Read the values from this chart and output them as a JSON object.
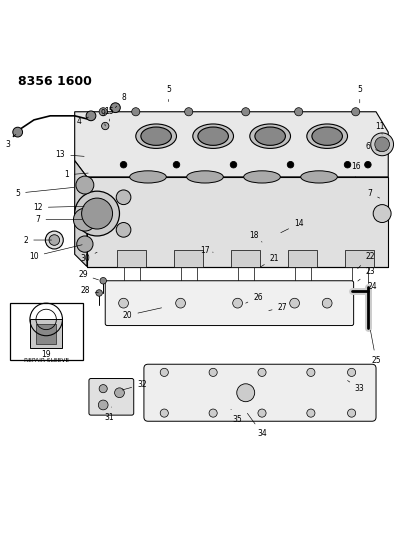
{
  "title_code": "8356 1600",
  "bg_color": "#ffffff",
  "line_color": "#000000",
  "fig_width": 4.1,
  "fig_height": 5.33,
  "dpi": 100,
  "repair_sleeve": "REPAIR SLEEVE",
  "labels_pos": {
    "1": [
      0.16,
      0.725,
      0.22,
      0.73
    ],
    "2": [
      0.06,
      0.565,
      0.13,
      0.565
    ],
    "3": [
      0.015,
      0.8,
      0.04,
      0.83
    ],
    "4": [
      0.19,
      0.855,
      0.22,
      0.87
    ],
    "5a": [
      0.04,
      0.68,
      0.185,
      0.695
    ],
    "5b": [
      0.41,
      0.935,
      0.41,
      0.905
    ],
    "5c": [
      0.88,
      0.935,
      0.88,
      0.895
    ],
    "6": [
      0.9,
      0.795,
      0.935,
      0.78
    ],
    "7a": [
      0.09,
      0.615,
      0.205,
      0.615
    ],
    "7b": [
      0.905,
      0.68,
      0.935,
      0.665
    ],
    "8": [
      0.3,
      0.915,
      0.28,
      0.89
    ],
    "9": [
      0.25,
      0.875,
      0.255,
      0.845
    ],
    "10": [
      0.08,
      0.525,
      0.205,
      0.555
    ],
    "11": [
      0.93,
      0.845,
      0.935,
      0.825
    ],
    "12": [
      0.09,
      0.645,
      0.21,
      0.648
    ],
    "13": [
      0.145,
      0.775,
      0.21,
      0.77
    ],
    "14": [
      0.73,
      0.605,
      0.68,
      0.58
    ],
    "15": [
      0.265,
      0.88,
      0.265,
      0.857
    ],
    "16": [
      0.87,
      0.745,
      0.87,
      0.72
    ],
    "17": [
      0.5,
      0.54,
      0.52,
      0.535
    ],
    "18": [
      0.62,
      0.575,
      0.64,
      0.56
    ],
    "20": [
      0.31,
      0.38,
      0.4,
      0.4
    ],
    "21": [
      0.67,
      0.52,
      0.63,
      0.495
    ],
    "22": [
      0.905,
      0.525,
      0.87,
      0.49
    ],
    "23": [
      0.905,
      0.488,
      0.87,
      0.46
    ],
    "24": [
      0.91,
      0.45,
      0.9,
      0.44
    ],
    "25": [
      0.92,
      0.27,
      0.905,
      0.35
    ],
    "26": [
      0.63,
      0.425,
      0.6,
      0.41
    ],
    "27": [
      0.69,
      0.4,
      0.65,
      0.39
    ],
    "28": [
      0.205,
      0.44,
      0.245,
      0.435
    ],
    "29": [
      0.2,
      0.48,
      0.245,
      0.465
    ],
    "30": [
      0.205,
      0.52,
      0.235,
      0.535
    ],
    "31": [
      0.265,
      0.13,
      0.27,
      0.155
    ],
    "32": [
      0.345,
      0.21,
      0.29,
      0.195
    ],
    "33": [
      0.88,
      0.2,
      0.85,
      0.22
    ],
    "34": [
      0.64,
      0.09,
      0.6,
      0.145
    ],
    "35": [
      0.58,
      0.125,
      0.56,
      0.155
    ]
  }
}
